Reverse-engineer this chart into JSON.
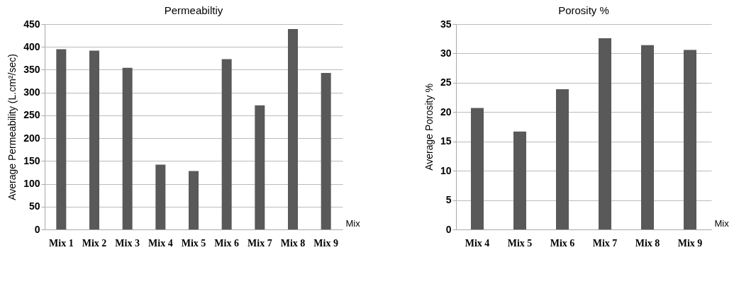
{
  "chart_data": [
    {
      "type": "bar",
      "title": "Permeabiltiy",
      "xlabel": "Mix",
      "ylabel": "Average Permeability (L.cm²/sec)",
      "categories": [
        "Mix 1",
        "Mix 2",
        "Mix 3",
        "Mix 4",
        "Mix 5",
        "Mix 6",
        "Mix 7",
        "Mix 8",
        "Mix 9"
      ],
      "values": [
        395,
        392,
        354,
        142,
        128,
        373,
        272,
        439,
        343
      ],
      "color": "#595959",
      "ylim": [
        0,
        450
      ],
      "yticks": [
        0,
        50,
        100,
        150,
        200,
        250,
        300,
        350,
        400,
        450
      ],
      "grid": "y"
    },
    {
      "type": "bar",
      "title": "Porosity %",
      "xlabel": "Mix",
      "ylabel": "Average Porosity %",
      "categories": [
        "Mix 4",
        "Mix 5",
        "Mix 6",
        "Mix 7",
        "Mix 8",
        "Mix 9"
      ],
      "values": [
        20.7,
        16.7,
        23.9,
        32.6,
        31.4,
        30.6
      ],
      "color": "#595959",
      "ylim": [
        0,
        35
      ],
      "yticks": [
        0,
        5,
        10,
        15,
        20,
        25,
        30,
        35
      ],
      "grid": "y"
    }
  ]
}
